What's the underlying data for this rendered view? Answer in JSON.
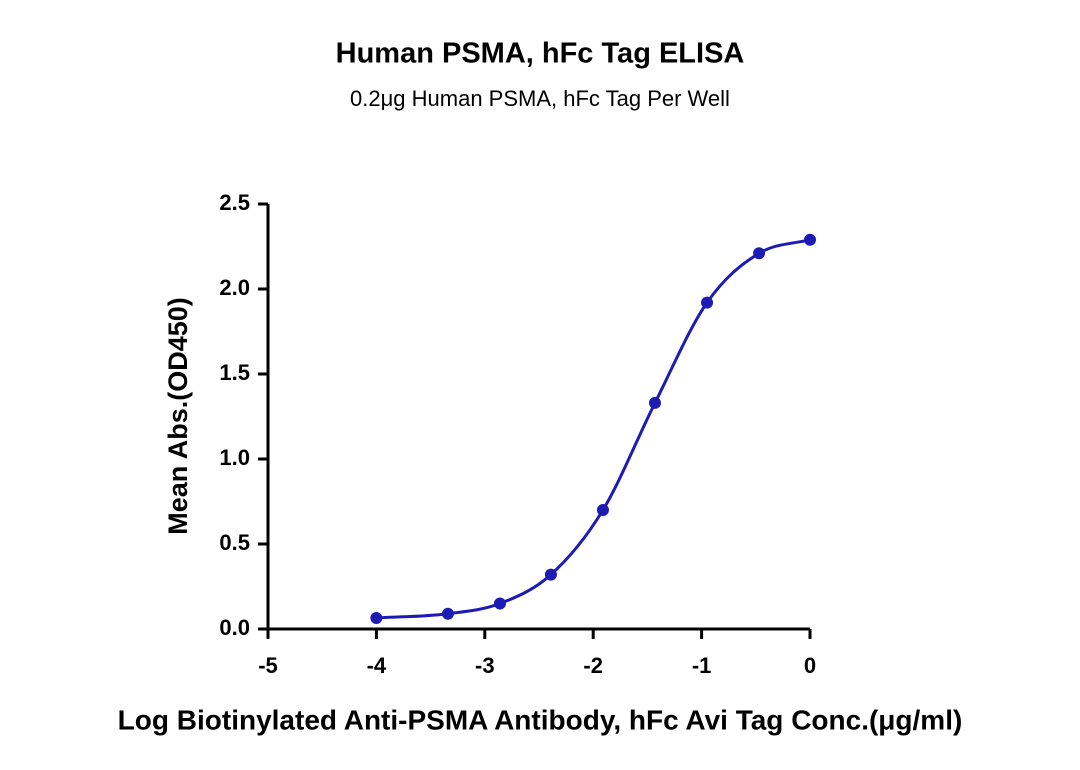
{
  "chart_data": {
    "type": "scatter",
    "title": "Human PSMA, hFc Tag ELISA",
    "subtitle": "0.2μg Human PSMA, hFc Tag Per Well",
    "x_label": "Log Biotinylated Anti-PSMA Antibody, hFc Avi Tag Conc.(μg/ml)",
    "y_label": "Mean Abs.(OD450)",
    "x": [
      -4.0,
      -3.34,
      -2.86,
      -2.39,
      -1.91,
      -1.43,
      -0.95,
      -0.47,
      0
    ],
    "values": [
      0.065,
      0.09,
      0.15,
      0.32,
      0.7,
      1.33,
      1.92,
      2.21,
      2.29
    ],
    "color": "#1c1cb4",
    "xlim": [
      -5,
      0
    ],
    "xticks": [
      -5,
      -4,
      -3,
      -2,
      -1,
      0
    ],
    "ylim": [
      0,
      2.5
    ],
    "yticks": [
      {
        "value": 0,
        "label": "0.0"
      },
      0.5,
      {
        "value": 1,
        "label": "1.0"
      },
      1.5,
      {
        "value": 2,
        "label": "2.0"
      },
      2.5
    ],
    "fit_line": true
  }
}
